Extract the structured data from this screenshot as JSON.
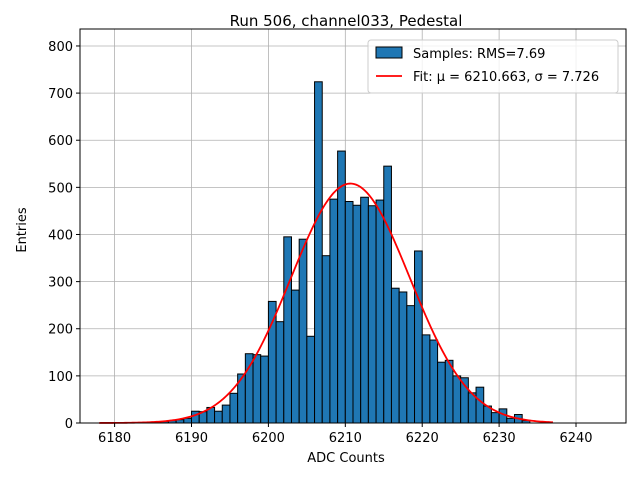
{
  "chart_data": {
    "type": "bar",
    "title": "Run 506, channel033, Pedestal",
    "xlabel": "ADC Counts",
    "ylabel": "Entries",
    "xlim": [
      6175.5,
      6246.5
    ],
    "ylim": [
      0,
      836
    ],
    "xticks": [
      6180,
      6190,
      6200,
      6210,
      6220,
      6230,
      6240
    ],
    "yticks": [
      0,
      100,
      200,
      300,
      400,
      500,
      600,
      700,
      800
    ],
    "grid": true,
    "legend_position": "top-right",
    "bin_width": 1,
    "bars": {
      "name": "Samples: RMS=7.69",
      "color": "#1f77b4",
      "edge_color": "#000000",
      "bin_starts": [
        6185,
        6186,
        6187,
        6188,
        6189,
        6190,
        6191,
        6192,
        6193,
        6194,
        6195,
        6196,
        6197,
        6198,
        6199,
        6200,
        6201,
        6202,
        6203,
        6204,
        6205,
        6206,
        6207,
        6208,
        6209,
        6210,
        6211,
        6212,
        6213,
        6214,
        6215,
        6216,
        6217,
        6218,
        6219,
        6220,
        6221,
        6222,
        6223,
        6224,
        6225,
        6226,
        6227,
        6228,
        6229,
        6230,
        6231,
        6232,
        6233
      ],
      "values": [
        2,
        3,
        5,
        7,
        10,
        25,
        24,
        33,
        25,
        38,
        63,
        104,
        147,
        145,
        142,
        258,
        215,
        395,
        282,
        390,
        184,
        724,
        355,
        475,
        577,
        470,
        462,
        479,
        461,
        473,
        545,
        286,
        278,
        249,
        365,
        187,
        176,
        129,
        133,
        100,
        96,
        64,
        76,
        36,
        22,
        30,
        10,
        18,
        5
      ]
    },
    "fit": {
      "name": "Fit: μ = 6210.663, σ = 7.726",
      "color": "#ff0000",
      "mu": 6210.663,
      "sigma": 7.726,
      "amplitude": 508,
      "x_range": [
        6178,
        6237
      ]
    }
  }
}
